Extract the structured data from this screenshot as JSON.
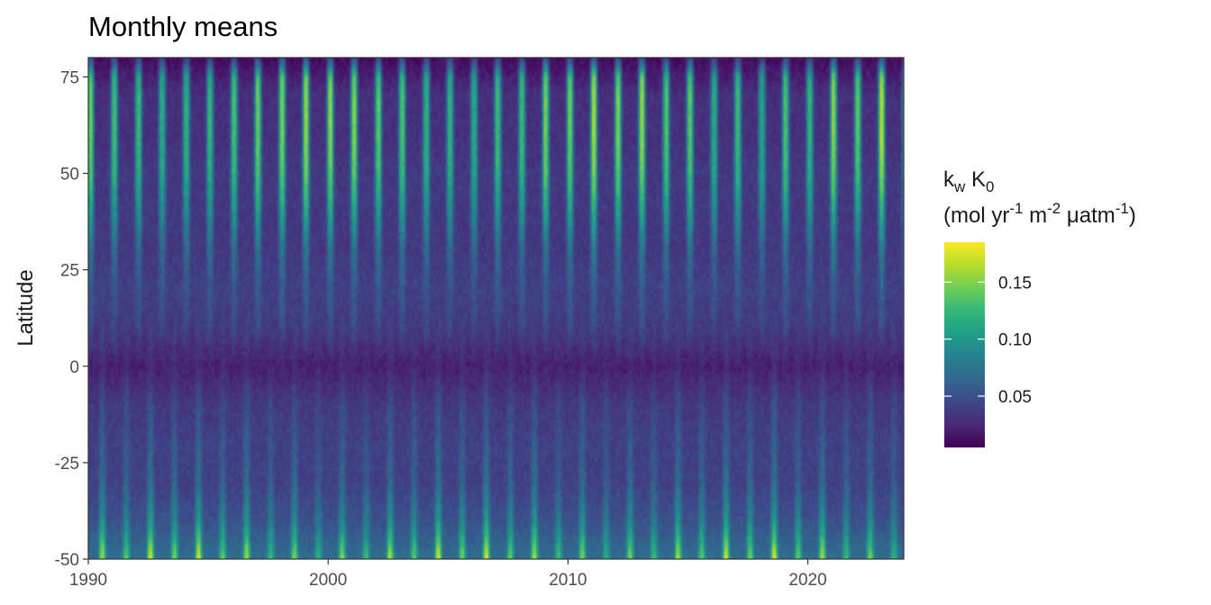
{
  "chart_data": {
    "type": "heatmap",
    "title": "Monthly means",
    "xlabel": "",
    "ylabel": "Latitude",
    "x_range": [
      1990,
      2024
    ],
    "y_range": [
      -50,
      80
    ],
    "x_ticks": [
      1990,
      2000,
      2010,
      2020
    ],
    "y_ticks": [
      -50,
      -25,
      0,
      25,
      50,
      75
    ],
    "x_tick_labels": [
      "1990",
      "2000",
      "2010",
      "2020"
    ],
    "y_tick_labels": [
      "-50",
      "-25",
      "0",
      "25",
      "50",
      "75"
    ],
    "time_resolution": "monthly",
    "seasonal_pattern": "strong annual cycle at high latitudes; northern maxima in boreal winter, southern maxima in austral winter",
    "value_profile_by_latitude": [
      {
        "lat": -50,
        "low": 0.07,
        "high": 0.17
      },
      {
        "lat": -45,
        "low": 0.06,
        "high": 0.13
      },
      {
        "lat": -40,
        "low": 0.05,
        "high": 0.1
      },
      {
        "lat": -30,
        "low": 0.04,
        "high": 0.07
      },
      {
        "lat": -20,
        "low": 0.04,
        "high": 0.06
      },
      {
        "lat": -10,
        "low": 0.035,
        "high": 0.05
      },
      {
        "lat": 0,
        "low": 0.02,
        "high": 0.03
      },
      {
        "lat": 10,
        "low": 0.035,
        "high": 0.055
      },
      {
        "lat": 20,
        "low": 0.04,
        "high": 0.06
      },
      {
        "lat": 30,
        "low": 0.035,
        "high": 0.08
      },
      {
        "lat": 40,
        "low": 0.035,
        "high": 0.12
      },
      {
        "lat": 50,
        "low": 0.035,
        "high": 0.15
      },
      {
        "lat": 60,
        "low": 0.03,
        "high": 0.16
      },
      {
        "lat": 70,
        "low": 0.03,
        "high": 0.16
      },
      {
        "lat": 75,
        "low": 0.02,
        "high": 0.15
      },
      {
        "lat": 80,
        "low": 0.01,
        "high": 0.05
      }
    ],
    "legend": {
      "title_line1_main": "k",
      "title_line1_sub_1": "w",
      "title_line1_mid": " K",
      "title_line1_sub_2": "0",
      "title_line2_parts": [
        "(mol yr",
        "-1",
        " m",
        "-2",
        " μatm",
        "-1",
        ")"
      ],
      "range": [
        0.005,
        0.185
      ],
      "ticks": [
        0.05,
        0.1,
        0.15
      ],
      "tick_labels": [
        "0.05",
        "0.10",
        "0.15"
      ],
      "colormap": "viridis",
      "position": "right"
    },
    "grid": false
  },
  "colors": {
    "viridis": [
      "#440154",
      "#482878",
      "#3e4989",
      "#31688e",
      "#26828e",
      "#1f9e89",
      "#35b779",
      "#6ece58",
      "#b5de2b",
      "#fde725"
    ],
    "panel_border": "#333333",
    "tick_color": "#333333"
  }
}
